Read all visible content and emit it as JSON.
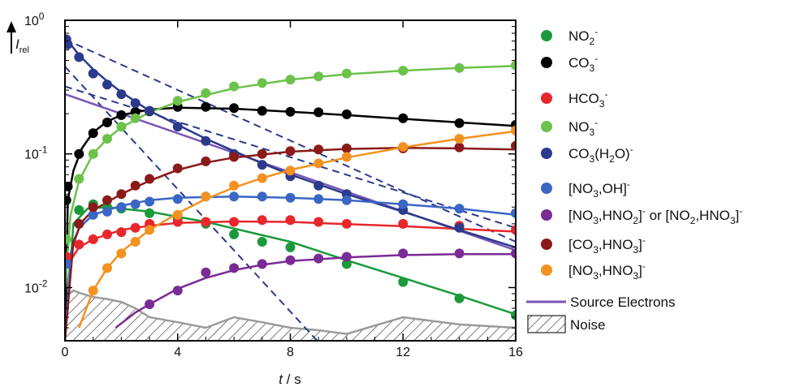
{
  "chart_data": {
    "type": "scatter",
    "title": "",
    "xlabel": {
      "main": "t",
      "unit": " / s"
    },
    "ylabel": {
      "main": "I",
      "sub": "rel"
    },
    "xlim": [
      0,
      16
    ],
    "ylim": [
      0.004,
      1
    ],
    "yscale": "log",
    "x_ticks": [
      0,
      4,
      8,
      12,
      16
    ],
    "x_tick_labels": [
      "0",
      "4",
      "8",
      "12",
      "16"
    ],
    "y_ticks": [
      0.01,
      0.1,
      1
    ],
    "y_tick_labels": [
      {
        "base": "10",
        "exp": "-2"
      },
      {
        "base": "10",
        "exp": "-1"
      },
      {
        "base": "10",
        "exp": "0"
      }
    ],
    "grid": false,
    "legend_position": "right",
    "series": [
      {
        "name": "NO₂⁻",
        "color": "#1a9a3a",
        "legend_label": {
          "main": "NO",
          "parts": [
            {
              "t": "2",
              "k": "sub"
            },
            {
              "t": "-",
              "k": "sup"
            }
          ]
        },
        "x": [
          0.05,
          0.5,
          1,
          1.5,
          2,
          3,
          4,
          5,
          6,
          7,
          8,
          10,
          12,
          14,
          16
        ],
        "y": [
          0.023,
          0.038,
          0.042,
          0.04,
          0.039,
          0.036,
          0.033,
          0.03,
          0.025,
          0.022,
          0.02,
          0.015,
          0.011,
          0.0083,
          0.0062
        ],
        "fit": [
          [
            0,
            0.004
          ],
          [
            0.3,
            0.03
          ],
          [
            0.8,
            0.039
          ],
          [
            1.5,
            0.04
          ],
          [
            3,
            0.037
          ],
          [
            5,
            0.031
          ],
          [
            8,
            0.022
          ],
          [
            10,
            0.016
          ],
          [
            12,
            0.0118
          ],
          [
            14,
            0.0087
          ],
          [
            16,
            0.0063
          ]
        ]
      },
      {
        "name": "CO₃⁻",
        "color": "#000000",
        "legend_label": {
          "main": "CO",
          "parts": [
            {
              "t": "3",
              "k": "sub"
            },
            {
              "t": "-",
              "k": "sup"
            }
          ]
        },
        "x": [
          0.05,
          0.1,
          0.5,
          1,
          1.5,
          2,
          2.5,
          3,
          4,
          5,
          6,
          7,
          8,
          9,
          10,
          12,
          14,
          16
        ],
        "y": [
          0.045,
          0.057,
          0.1,
          0.143,
          0.172,
          0.195,
          0.206,
          0.208,
          0.225,
          0.225,
          0.22,
          0.21,
          0.207,
          0.205,
          0.198,
          0.185,
          0.17,
          0.165
        ],
        "fit": [
          [
            0,
            0.004
          ],
          [
            0.1,
            0.045
          ],
          [
            0.3,
            0.075
          ],
          [
            0.6,
            0.11
          ],
          [
            1,
            0.145
          ],
          [
            1.5,
            0.175
          ],
          [
            2,
            0.195
          ],
          [
            3,
            0.215
          ],
          [
            4,
            0.222
          ],
          [
            6,
            0.218
          ],
          [
            8,
            0.207
          ],
          [
            10,
            0.195
          ],
          [
            12,
            0.183
          ],
          [
            14,
            0.172
          ],
          [
            16,
            0.162
          ]
        ]
      },
      {
        "name": "HCO₃⁻",
        "color": "#e8262c",
        "legend_label": {
          "main": "HCO",
          "parts": [
            {
              "t": "3",
              "k": "sub"
            },
            {
              "t": "-",
              "k": "sup"
            }
          ]
        },
        "x": [
          0.05,
          0.5,
          1,
          1.5,
          2,
          2.5,
          3,
          4,
          5,
          6,
          7,
          8,
          9,
          10,
          12,
          14,
          16
        ],
        "y": [
          0.017,
          0.021,
          0.023,
          0.025,
          0.026,
          0.028,
          0.03,
          0.031,
          0.031,
          0.031,
          0.032,
          0.032,
          0.031,
          0.03,
          0.03,
          0.029,
          0.027
        ],
        "fit": [
          [
            0,
            0.004
          ],
          [
            0.2,
            0.016
          ],
          [
            0.5,
            0.02
          ],
          [
            1,
            0.023
          ],
          [
            2,
            0.027
          ],
          [
            3,
            0.029
          ],
          [
            4,
            0.0305
          ],
          [
            6,
            0.0312
          ],
          [
            8,
            0.031
          ],
          [
            10,
            0.0298
          ],
          [
            12,
            0.0288
          ],
          [
            14,
            0.0275
          ],
          [
            16,
            0.0262
          ]
        ]
      },
      {
        "name": "NO₃⁻",
        "color": "#6cc24a",
        "legend_label": {
          "main": "NO",
          "parts": [
            {
              "t": "3",
              "k": "sub"
            },
            {
              "t": "-",
              "k": "sup"
            }
          ]
        },
        "x": [
          0.05,
          0.5,
          1,
          1.5,
          2,
          2.5,
          3,
          4,
          5,
          6,
          7,
          8,
          9,
          10,
          12,
          14,
          16
        ],
        "y": [
          0.023,
          0.065,
          0.1,
          0.13,
          0.16,
          0.185,
          0.21,
          0.25,
          0.285,
          0.32,
          0.34,
          0.36,
          0.38,
          0.4,
          0.42,
          0.44,
          0.46
        ],
        "fit": [
          [
            0,
            0.01
          ],
          [
            0.2,
            0.035
          ],
          [
            0.5,
            0.063
          ],
          [
            1,
            0.1
          ],
          [
            1.5,
            0.13
          ],
          [
            2,
            0.158
          ],
          [
            3,
            0.205
          ],
          [
            4,
            0.245
          ],
          [
            6,
            0.31
          ],
          [
            8,
            0.36
          ],
          [
            10,
            0.395
          ],
          [
            12,
            0.42
          ],
          [
            14,
            0.44
          ],
          [
            16,
            0.455
          ]
        ]
      },
      {
        "name": "CO₃(H₂O)⁻",
        "color": "#2b3a8c",
        "legend_label": {
          "main": "CO",
          "parts": [
            {
              "t": "3",
              "k": "sub"
            },
            {
              "t": "(H",
              "k": "n"
            },
            {
              "t": "2",
              "k": "sub"
            },
            {
              "t": "O)",
              "k": "n"
            },
            {
              "t": "-",
              "k": "sup"
            }
          ]
        },
        "x": [
          0.05,
          0.1,
          0.5,
          1,
          1.5,
          2,
          2.5,
          3,
          4,
          5,
          6,
          7,
          8,
          9,
          10,
          12,
          14
        ],
        "y": [
          0.72,
          0.66,
          0.53,
          0.4,
          0.33,
          0.28,
          0.24,
          0.21,
          0.16,
          0.125,
          0.1,
          0.083,
          0.068,
          0.058,
          0.05,
          0.038,
          0.028
        ],
        "fit": [
          [
            0,
            0.75
          ],
          [
            0.5,
            0.55
          ],
          [
            1,
            0.43
          ],
          [
            1.5,
            0.35
          ],
          [
            2,
            0.29
          ],
          [
            3,
            0.21
          ],
          [
            4,
            0.165
          ],
          [
            5,
            0.13
          ],
          [
            6,
            0.105
          ],
          [
            7,
            0.085
          ],
          [
            8,
            0.07
          ],
          [
            10,
            0.05
          ],
          [
            12,
            0.037
          ],
          [
            14,
            0.027
          ],
          [
            16,
            0.02
          ]
        ]
      },
      {
        "name": "[NO₃,OH]⁻",
        "color": "#3a66c4",
        "legend_label": {
          "main": "[NO",
          "parts": [
            {
              "t": "3",
              "k": "sub"
            },
            {
              "t": ",OH]",
              "k": "n"
            },
            {
              "t": "-",
              "k": "sup"
            }
          ]
        },
        "x": [
          0.05,
          0.5,
          1,
          1.5,
          2,
          2.5,
          3,
          4,
          5,
          6,
          7,
          8,
          9,
          10,
          12,
          14,
          16
        ],
        "y": [
          0.015,
          0.03,
          0.035,
          0.037,
          0.04,
          0.042,
          0.044,
          0.046,
          0.048,
          0.048,
          0.048,
          0.047,
          0.046,
          0.045,
          0.042,
          0.039,
          0.036
        ],
        "fit": [
          [
            0,
            0.004
          ],
          [
            0.2,
            0.018
          ],
          [
            0.5,
            0.028
          ],
          [
            1,
            0.035
          ],
          [
            2,
            0.041
          ],
          [
            3,
            0.045
          ],
          [
            4,
            0.047
          ],
          [
            6,
            0.048
          ],
          [
            8,
            0.047
          ],
          [
            10,
            0.045
          ],
          [
            12,
            0.042
          ],
          [
            14,
            0.039
          ],
          [
            16,
            0.035
          ]
        ]
      },
      {
        "name": "[NO₃,HNO₂]⁻ or [NO₂,HNO₃]⁻",
        "color": "#7b2b95",
        "legend_label": {
          "main": "[NO",
          "parts": [
            {
              "t": "3",
              "k": "sub"
            },
            {
              "t": ",HNO",
              "k": "n"
            },
            {
              "t": "2",
              "k": "sub"
            },
            {
              "t": "]",
              "k": "n"
            },
            {
              "t": "-",
              "k": "sup"
            },
            {
              "t": " or [NO",
              "k": "n"
            },
            {
              "t": "2",
              "k": "sub"
            },
            {
              "t": ",HNO",
              "k": "n"
            },
            {
              "t": "3",
              "k": "sub"
            },
            {
              "t": "]",
              "k": "n"
            },
            {
              "t": "-",
              "k": "sup"
            }
          ]
        },
        "x": [
          3,
          4,
          5,
          6,
          7,
          8,
          9,
          10,
          12,
          14,
          16
        ],
        "y": [
          0.0075,
          0.0095,
          0.013,
          0.014,
          0.015,
          0.016,
          0.0165,
          0.017,
          0.018,
          0.018,
          0.018
        ],
        "fit": [
          [
            1.8,
            0.005
          ],
          [
            2.5,
            0.0065
          ],
          [
            3,
            0.0075
          ],
          [
            4,
            0.0098
          ],
          [
            5,
            0.0118
          ],
          [
            6,
            0.0135
          ],
          [
            7,
            0.0148
          ],
          [
            8,
            0.0158
          ],
          [
            10,
            0.0168
          ],
          [
            12,
            0.0175
          ],
          [
            14,
            0.0178
          ],
          [
            16,
            0.0178
          ]
        ]
      },
      {
        "name": "[CO₃,HNO₃]⁻",
        "color": "#8b1a1a",
        "legend_label": {
          "main": "[CO",
          "parts": [
            {
              "t": "3",
              "k": "sub"
            },
            {
              "t": ",HNO",
              "k": "n"
            },
            {
              "t": "3",
              "k": "sub"
            },
            {
              "t": "]",
              "k": "n"
            },
            {
              "t": "-",
              "k": "sup"
            }
          ]
        },
        "x": [
          0.5,
          1,
          1.5,
          2,
          2.5,
          3,
          4,
          5,
          6,
          7,
          8,
          9,
          10,
          12,
          14,
          16
        ],
        "y": [
          0.03,
          0.04,
          0.045,
          0.05,
          0.058,
          0.065,
          0.078,
          0.088,
          0.095,
          0.1,
          0.105,
          0.108,
          0.11,
          0.11,
          0.112,
          0.115
        ],
        "fit": [
          [
            0,
            0.004
          ],
          [
            0.3,
            0.022
          ],
          [
            0.6,
            0.031
          ],
          [
            1,
            0.038
          ],
          [
            2,
            0.05
          ],
          [
            3,
            0.063
          ],
          [
            4,
            0.076
          ],
          [
            5,
            0.086
          ],
          [
            6,
            0.094
          ],
          [
            8,
            0.104
          ],
          [
            10,
            0.109
          ],
          [
            12,
            0.111
          ],
          [
            14,
            0.11
          ],
          [
            16,
            0.108
          ]
        ]
      },
      {
        "name": "[NO₃,HNO₃]⁻",
        "color": "#f39221",
        "legend_label": {
          "main": "[NO",
          "parts": [
            {
              "t": "3",
              "k": "sub"
            },
            {
              "t": ",HNO",
              "k": "n"
            },
            {
              "t": "3",
              "k": "sub"
            },
            {
              "t": "]",
              "k": "n"
            },
            {
              "t": "-",
              "k": "sup"
            }
          ]
        },
        "x": [
          1,
          1.5,
          2,
          2.5,
          3,
          4,
          5,
          6,
          7,
          8,
          9,
          10,
          12,
          14,
          16
        ],
        "y": [
          0.0095,
          0.014,
          0.018,
          0.022,
          0.027,
          0.035,
          0.048,
          0.058,
          0.066,
          0.075,
          0.085,
          0.095,
          0.113,
          0.13,
          0.15
        ],
        "fit": [
          [
            0.5,
            0.005
          ],
          [
            1,
            0.0095
          ],
          [
            1.5,
            0.014
          ],
          [
            2,
            0.0185
          ],
          [
            3,
            0.027
          ],
          [
            4,
            0.036
          ],
          [
            5,
            0.046
          ],
          [
            6,
            0.056
          ],
          [
            7,
            0.066
          ],
          [
            8,
            0.076
          ],
          [
            10,
            0.094
          ],
          [
            12,
            0.112
          ],
          [
            14,
            0.13
          ],
          [
            16,
            0.148
          ]
        ]
      }
    ],
    "source_electrons": {
      "name": "Source Electrons",
      "color": "#7a55b5",
      "line": [
        [
          0,
          0.28
        ],
        [
          16,
          0.019
        ]
      ]
    },
    "dashed_curves": {
      "color": "#2b3a8c",
      "curves": [
        [
          [
            0,
            0.45
          ],
          [
            9,
            0.0039
          ]
        ],
        [
          [
            0,
            0.32
          ],
          [
            16,
            0.028
          ]
        ],
        [
          [
            0,
            0.72
          ],
          [
            16,
            0.022
          ]
        ]
      ]
    },
    "noise": {
      "name": "Noise",
      "color": "#9a9a9a",
      "x": [
        0,
        0.3,
        0.6,
        1,
        1.5,
        2,
        2.5,
        3,
        4,
        5,
        6,
        7,
        8,
        9,
        10,
        12,
        14,
        16
      ],
      "y": [
        0.0085,
        0.0095,
        0.009,
        0.0085,
        0.0082,
        0.0078,
        0.007,
        0.006,
        0.0055,
        0.005,
        0.006,
        0.0055,
        0.005,
        0.0048,
        0.0045,
        0.006,
        0.0053,
        0.005
      ]
    }
  }
}
